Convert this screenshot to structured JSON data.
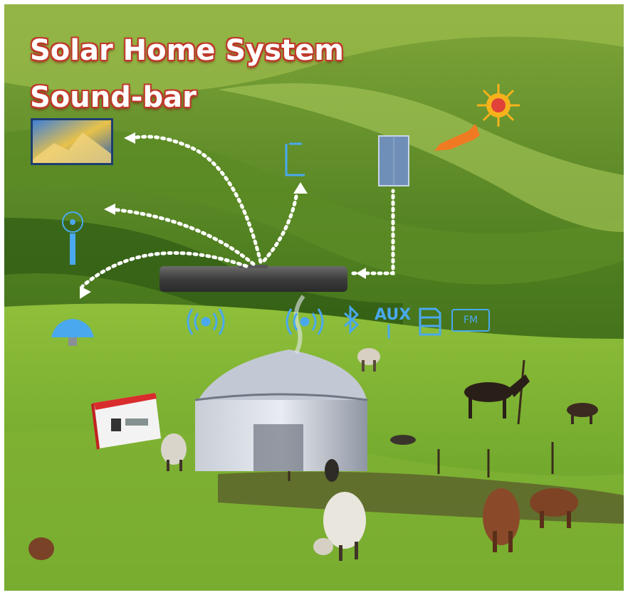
{
  "title": {
    "line1": "Solar Home  System",
    "line2": "Sound-bar"
  },
  "connectivity": {
    "aux_label": "AUX",
    "fm_label": "FM"
  },
  "icons": [
    "wireless-signal-icon",
    "wireless-signal-icon",
    "bluetooth-icon",
    "aux-icon",
    "sd-card-icon",
    "fm-radio-icon",
    "sun-icon",
    "arrow-icon"
  ],
  "colors": {
    "title_fill": "#ffffff",
    "title_outline": "#c0392b",
    "icon_blue": "#4aa8ee",
    "sun": "#f6b21b",
    "arrow": "#f07a22",
    "grass": "#6da62a",
    "hill": "#3e6f1b"
  }
}
